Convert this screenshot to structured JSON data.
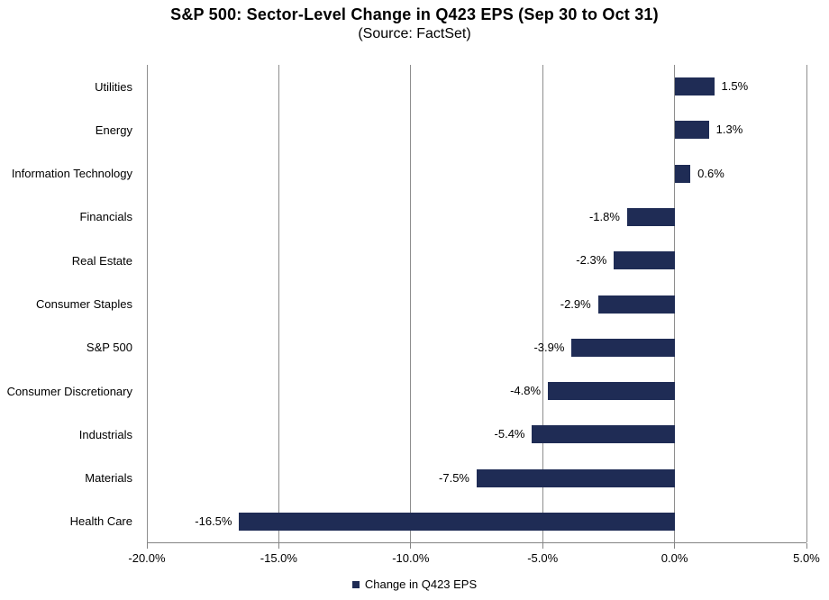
{
  "header": {
    "title": "S&P 500: Sector-Level Change in Q423 EPS (Sep 30 to Oct 31)",
    "subtitle": "(Source: FactSet)"
  },
  "chart_data": {
    "type": "bar",
    "orientation": "horizontal",
    "title": "S&P 500: Sector-Level Change in Q423 EPS (Sep 30 to Oct 31)",
    "subtitle": "(Source: FactSet)",
    "categories": [
      "Utilities",
      "Energy",
      "Information Technology",
      "Financials",
      "Real Estate",
      "Consumer Staples",
      "S&P 500",
      "Consumer Discretionary",
      "Industrials",
      "Materials",
      "Health Care"
    ],
    "values": [
      1.5,
      1.3,
      0.6,
      -1.8,
      -2.3,
      -2.9,
      -3.9,
      -4.8,
      -5.4,
      -7.5,
      -16.5
    ],
    "data_labels": [
      "1.5%",
      "1.3%",
      "0.6%",
      "-1.8%",
      "-2.3%",
      "-2.9%",
      "-3.9%",
      "-4.8%",
      "-5.4%",
      "-7.5%",
      "-16.5%"
    ],
    "xlim": [
      -20,
      5
    ],
    "x_ticks": [
      -20,
      -15,
      -10,
      -5,
      0,
      5
    ],
    "x_tick_labels": [
      "-20.0%",
      "-15.0%",
      "-10.0%",
      "-5.0%",
      "0.0%",
      "5.0%"
    ],
    "legend": [
      "Change in Q423 EPS"
    ],
    "legend_position": "bottom",
    "grid": "vertical-only",
    "colors": {
      "bar": "#1F2C55",
      "gridline": "#8E8E8E",
      "axis_line": "#848484",
      "text": "#000000",
      "background": "#FFFFFF"
    }
  }
}
